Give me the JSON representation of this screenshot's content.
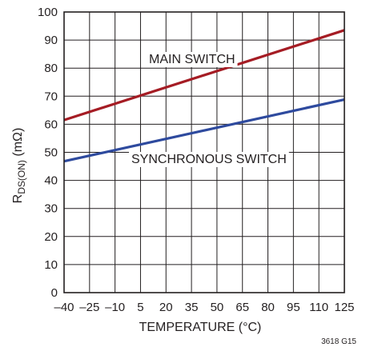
{
  "chart_data": {
    "type": "line",
    "x_ticks": [
      "–40",
      "–25",
      "–10",
      "5",
      "20",
      "35",
      "50",
      "65",
      "80",
      "95",
      "110",
      "125"
    ],
    "y_ticks": [
      "0",
      "10",
      "20",
      "30",
      "40",
      "50",
      "60",
      "70",
      "80",
      "90",
      "100"
    ],
    "xlim": [
      -40,
      125
    ],
    "ylim": [
      0,
      100
    ],
    "grid": true,
    "series": [
      {
        "name": "MAIN SWITCH",
        "color": "#a51c24",
        "x": [
          -40,
          125
        ],
        "y": [
          61.5,
          93.5
        ]
      },
      {
        "name": "SYNCHRONOUS SWITCH",
        "color": "#2e4a9e",
        "x": [
          -40,
          125
        ],
        "y": [
          46.8,
          68.8
        ]
      }
    ],
    "xlabel": "TEMPERATURE (°C)",
    "ylabel": {
      "prefix": "R",
      "subscript": "DS(ON)",
      "suffix": " (mΩ)"
    },
    "annotations": {
      "main_switch": "MAIN SWITCH",
      "sync_switch": "SYNCHRONOUS SWITCH"
    },
    "figure_id": "3618 G15"
  }
}
